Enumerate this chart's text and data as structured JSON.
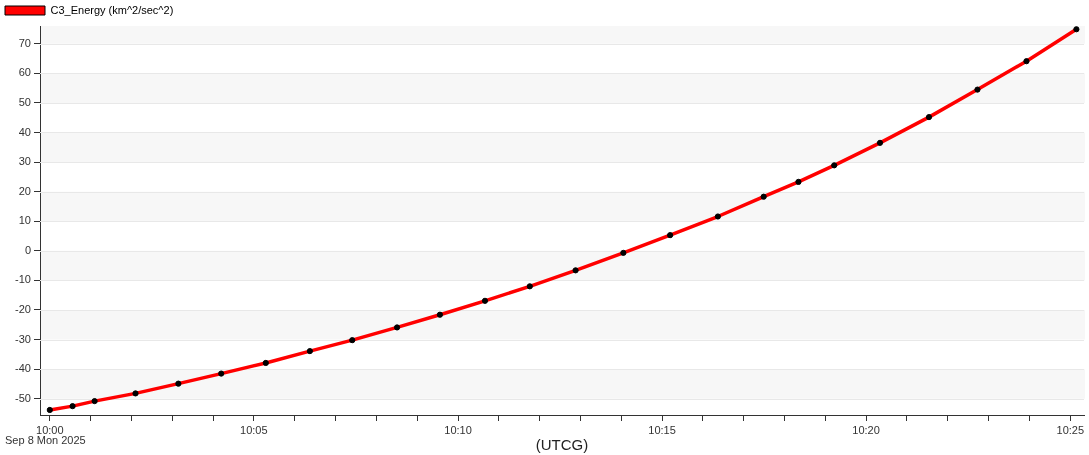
{
  "chart_data": {
    "type": "line",
    "xlabel": "(UTCG)",
    "annotations": [
      "Sep 8 Mon 2025"
    ],
    "legend": "top left",
    "grid": "y",
    "marker": "circle",
    "line_style": "solid",
    "x": [
      10.0,
      10.0093,
      10.0183,
      10.035,
      10.0525,
      10.07,
      10.0882,
      10.1062,
      10.1235,
      10.1418,
      10.1593,
      10.1777,
      10.196,
      10.2147,
      10.2342,
      10.2533,
      10.2728,
      10.2915,
      10.3057,
      10.3203,
      10.339,
      10.359,
      10.3788,
      10.3988,
      10.4192
    ],
    "series": [
      {
        "name": "C3_Energy (km^2/sec^2)",
        "color": "#ff0000",
        "values": [
          -53.8,
          -52.5,
          -50.8,
          -48.2,
          -44.9,
          -41.5,
          -37.9,
          -33.9,
          -30.2,
          -25.9,
          -21.6,
          -16.9,
          -12,
          -6.6,
          -0.7,
          5.3,
          11.6,
          18.3,
          23.3,
          28.9,
          36.5,
          45.2,
          54.5,
          64.1,
          74.9
        ]
      }
    ],
    "xlim": [
      9.996,
      10.4223
    ],
    "ylim": [
      -55.5,
      76
    ],
    "xticks": [
      {
        "value": 10,
        "label": "10:00"
      },
      {
        "value": 10.0167,
        "label": null
      },
      {
        "value": 10.0333,
        "label": null
      },
      {
        "value": 10.05,
        "label": null
      },
      {
        "value": 10.0667,
        "label": null
      },
      {
        "value": 10.0833,
        "label": "10:05"
      },
      {
        "value": 10.1,
        "label": null
      },
      {
        "value": 10.1167,
        "label": null
      },
      {
        "value": 10.1333,
        "label": null
      },
      {
        "value": 10.15,
        "label": null
      },
      {
        "value": 10.1667,
        "label": "10:10"
      },
      {
        "value": 10.1833,
        "label": null
      },
      {
        "value": 10.2,
        "label": null
      },
      {
        "value": 10.2167,
        "label": null
      },
      {
        "value": 10.2333,
        "label": null
      },
      {
        "value": 10.25,
        "label": "10:15"
      },
      {
        "value": 10.2667,
        "label": null
      },
      {
        "value": 10.2833,
        "label": null
      },
      {
        "value": 10.3,
        "label": null
      },
      {
        "value": 10.3167,
        "label": null
      },
      {
        "value": 10.3333,
        "label": "10:20"
      },
      {
        "value": 10.35,
        "label": null
      },
      {
        "value": 10.3667,
        "label": null
      },
      {
        "value": 10.3833,
        "label": null
      },
      {
        "value": 10.4,
        "label": null
      },
      {
        "value": 10.4167,
        "label": "10:25"
      }
    ],
    "yticks": [
      -50,
      -40,
      -30,
      -20,
      -10,
      0,
      10,
      20,
      30,
      40,
      50,
      60,
      70
    ]
  }
}
